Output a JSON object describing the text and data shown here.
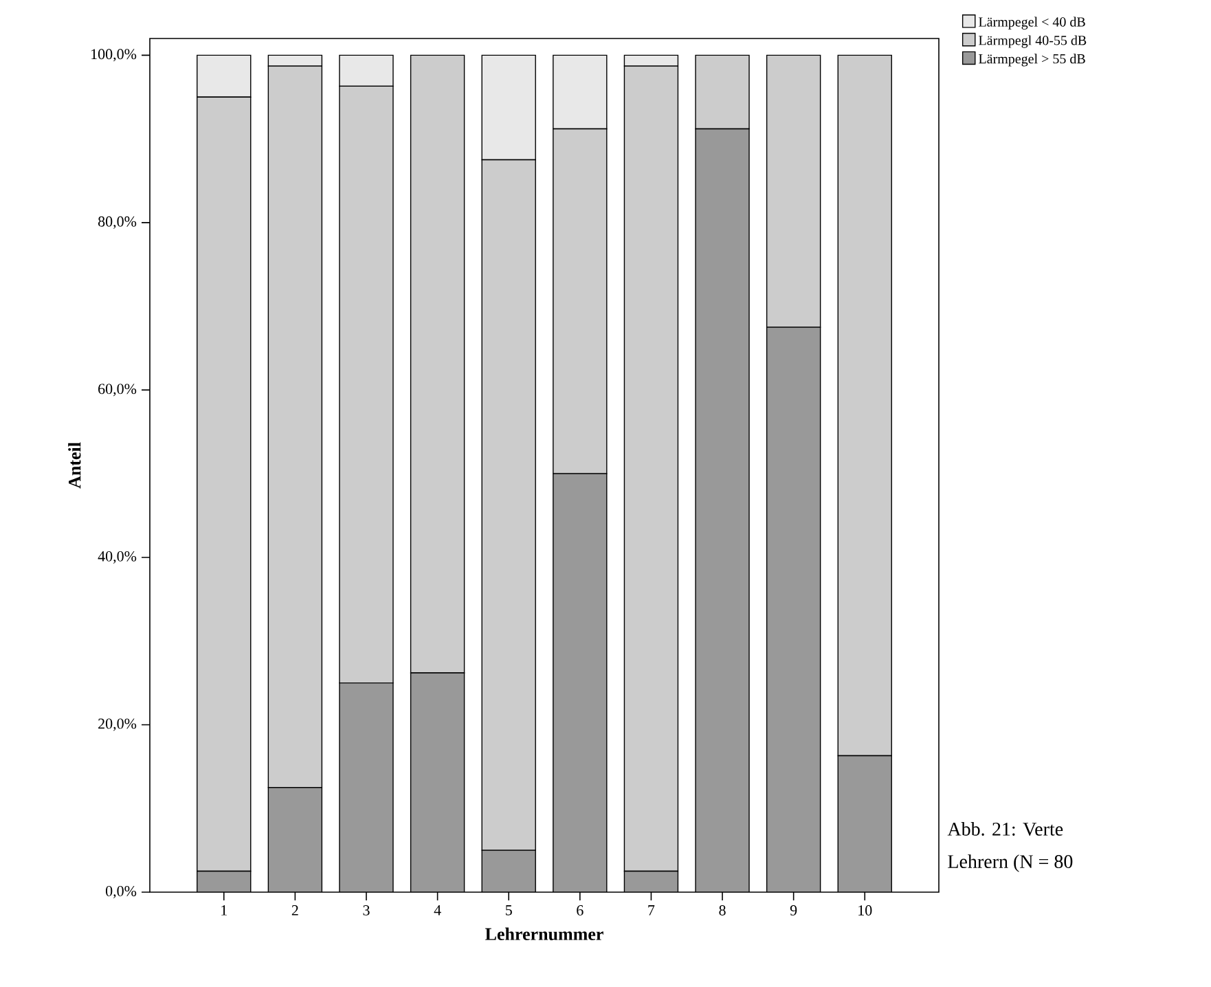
{
  "chart_data": {
    "type": "bar",
    "stacked": true,
    "xlabel": "Lehrernummer",
    "ylabel": "Anteil",
    "categories": [
      "1",
      "2",
      "3",
      "4",
      "5",
      "6",
      "7",
      "8",
      "9",
      "10"
    ],
    "series": [
      {
        "name": "Lärmpegel > 55 dB",
        "color": "#999999",
        "values": [
          2.5,
          12.5,
          25.0,
          26.2,
          5.0,
          50.0,
          2.5,
          91.2,
          67.5,
          16.3
        ]
      },
      {
        "name": "Lärmpegl 40-55 dB",
        "color": "#cccccc",
        "values": [
          92.5,
          86.2,
          71.3,
          73.8,
          82.5,
          41.2,
          96.2,
          8.8,
          32.5,
          83.7
        ]
      },
      {
        "name": "Lärmpegel < 40 dB",
        "color": "#e8e8e8",
        "values": [
          5.0,
          1.3,
          3.7,
          0,
          12.5,
          8.8,
          1.3,
          0,
          0,
          0
        ]
      }
    ],
    "ylim": [
      0,
      102
    ],
    "yticks": [
      {
        "value": 0,
        "label": "0,0%"
      },
      {
        "value": 20,
        "label": "20,0%"
      },
      {
        "value": 40,
        "label": "40,0%"
      },
      {
        "value": 60,
        "label": "60,0%"
      },
      {
        "value": 80,
        "label": "80,0%"
      },
      {
        "value": 100,
        "label": "100,0%"
      }
    ],
    "legend": "top right",
    "annotations": [
      "Abb. 21: Verte",
      "Lehrern (N = 80"
    ]
  }
}
